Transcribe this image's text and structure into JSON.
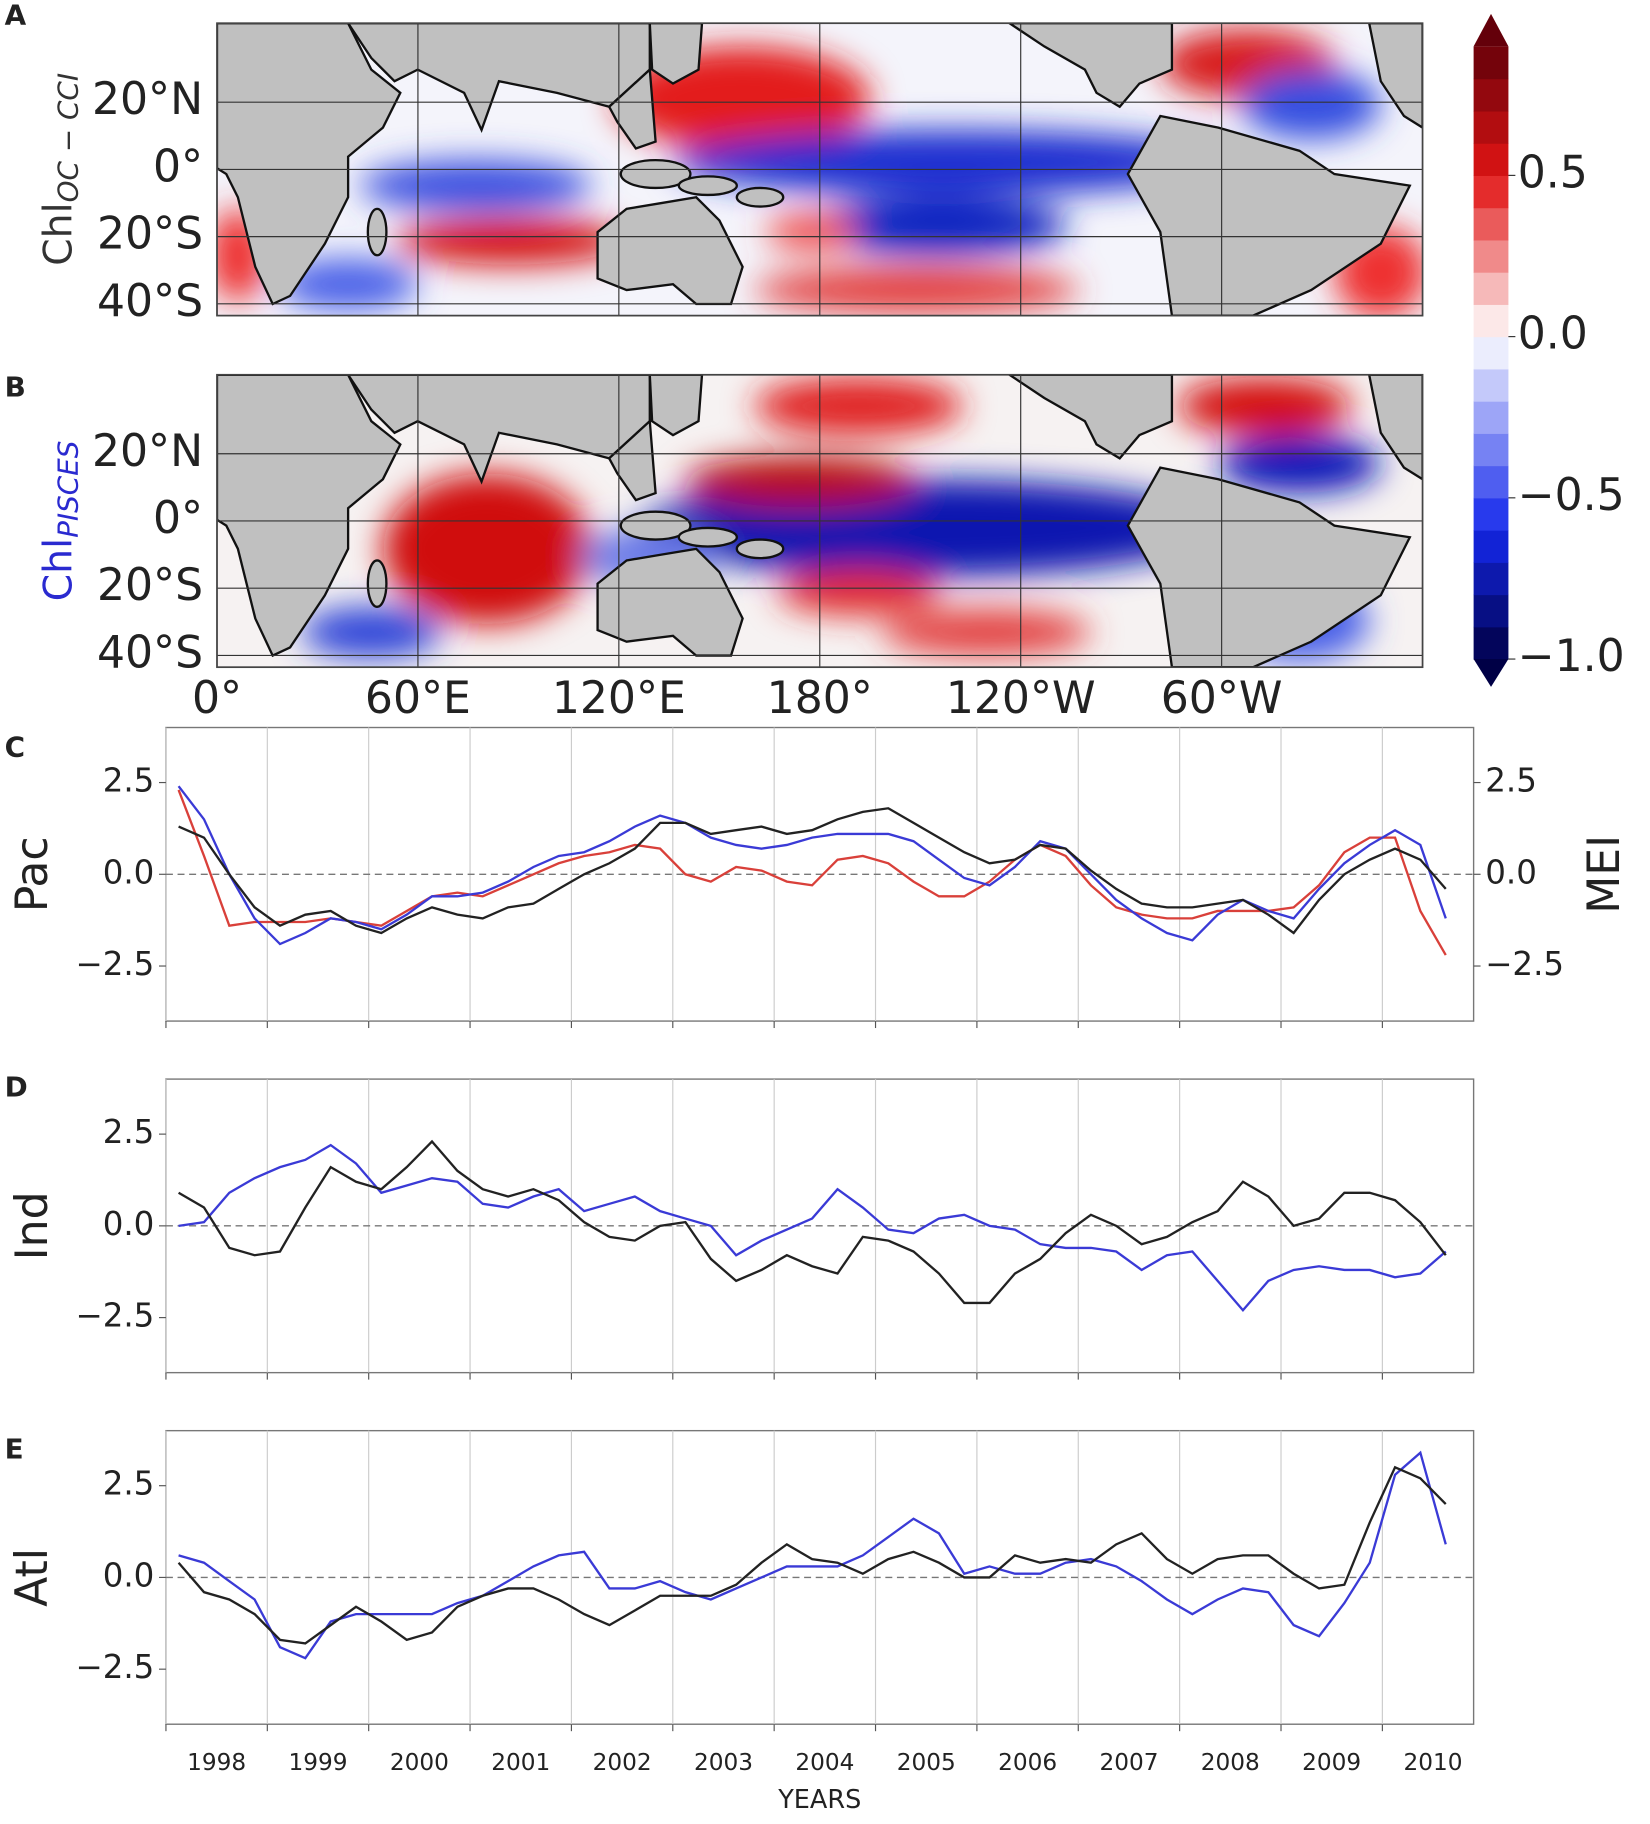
{
  "panel_labels": [
    "A",
    "B",
    "C",
    "D",
    "E"
  ],
  "maps": {
    "ylabels": [
      {
        "text": "Chl",
        "sub": "OC − CCI"
      },
      {
        "text": "Chl",
        "sub": "PISCES"
      }
    ],
    "lonlim": [
      0,
      360
    ],
    "latlim": [
      -43.5,
      43.5
    ],
    "lonticks": [
      {
        "value": 0,
        "label": "0°"
      },
      {
        "value": 60,
        "label": "60°E"
      },
      {
        "value": 120,
        "label": "120°E"
      },
      {
        "value": 180,
        "label": "180°"
      },
      {
        "value": 240,
        "label": "120°W"
      },
      {
        "value": 300,
        "label": "60°W"
      }
    ],
    "latticks": [
      {
        "value": 20,
        "label": "20°N"
      },
      {
        "value": 0,
        "label": "0°"
      },
      {
        "value": -20,
        "label": "20°S"
      },
      {
        "value": -40,
        "label": "40°S"
      }
    ]
  },
  "colorbar": {
    "lim": [
      -1.0,
      0.9
    ],
    "ticks": [
      0.5,
      {
        "value": 0,
        "label": "0.0"
      },
      {
        "value": -0.5,
        "label": "−0.5"
      },
      {
        "value": -1.0,
        "label": "−1.0"
      }
    ]
  },
  "chart_data": [
    {
      "type": "line",
      "ylabel": "Pac",
      "y2label": "MEI",
      "zero_line": true,
      "grid": true,
      "xlim": [
        1998,
        2010.9
      ],
      "xticks": [
        1998,
        1999,
        2000,
        2001,
        2002,
        2003,
        2004,
        2005,
        2006,
        2007,
        2008,
        2009,
        2010
      ],
      "ylim": [
        -4,
        4
      ],
      "yticks": [
        {
          "value": -2.5,
          "label": "−2.5"
        },
        {
          "value": 0,
          "label": "0.0"
        },
        2.5
      ],
      "y2lim": [
        -4,
        4
      ],
      "y2ticks": [
        {
          "value": -2.5,
          "label": "−2.5"
        },
        {
          "value": 0,
          "label": "0.0"
        },
        2.5
      ],
      "y2color": "#d9403a",
      "x": [
        1998.125,
        1998.375,
        1998.625,
        1998.875,
        1999.125,
        1999.375,
        1999.625,
        1999.875,
        2000.125,
        2000.375,
        2000.625,
        2000.875,
        2001.125,
        2001.375,
        2001.625,
        2001.875,
        2002.125,
        2002.375,
        2002.625,
        2002.875,
        2003.125,
        2003.375,
        2003.625,
        2003.875,
        2004.125,
        2004.375,
        2004.625,
        2004.875,
        2005.125,
        2005.375,
        2005.625,
        2005.875,
        2006.125,
        2006.375,
        2006.625,
        2006.875,
        2007.125,
        2007.375,
        2007.625,
        2007.875,
        2008.125,
        2008.375,
        2008.625,
        2008.875,
        2009.125,
        2009.375,
        2009.625,
        2009.875,
        2010.125,
        2010.375,
        2010.625
      ],
      "series": [
        {
          "color": "#d9403a",
          "axis": "y2",
          "values": [
            2.3,
            0.5,
            -1.4,
            -1.3,
            -1.3,
            -1.3,
            -1.2,
            -1.3,
            -1.4,
            -1.0,
            -0.6,
            -0.5,
            -0.6,
            -0.3,
            0.0,
            0.3,
            0.5,
            0.6,
            0.8,
            0.7,
            0.0,
            -0.2,
            0.2,
            0.1,
            -0.2,
            -0.3,
            0.4,
            0.5,
            0.3,
            -0.2,
            -0.6,
            -0.6,
            -0.2,
            0.4,
            0.8,
            0.5,
            -0.3,
            -0.9,
            -1.1,
            -1.2,
            -1.2,
            -1.0,
            -1.0,
            -1.0,
            -0.9,
            -0.3,
            0.6,
            1.0,
            1.0,
            -1.0,
            -2.2
          ]
        },
        {
          "color": "#3a3ad6",
          "values": [
            2.4,
            1.5,
            0.0,
            -1.2,
            -1.9,
            -1.6,
            -1.2,
            -1.3,
            -1.5,
            -1.1,
            -0.6,
            -0.6,
            -0.5,
            -0.2,
            0.2,
            0.5,
            0.6,
            0.9,
            1.3,
            1.6,
            1.4,
            1.0,
            0.8,
            0.7,
            0.8,
            1.0,
            1.1,
            1.1,
            1.1,
            0.9,
            0.4,
            -0.1,
            -0.3,
            0.2,
            0.9,
            0.7,
            0.0,
            -0.7,
            -1.2,
            -1.6,
            -1.8,
            -1.1,
            -0.7,
            -1.0,
            -1.2,
            -0.4,
            0.3,
            0.8,
            1.2,
            0.8,
            -1.2
          ]
        },
        {
          "color": "#222222",
          "values": [
            1.3,
            1.0,
            0.0,
            -0.9,
            -1.4,
            -1.1,
            -1.0,
            -1.4,
            -1.6,
            -1.2,
            -0.9,
            -1.1,
            -1.2,
            -0.9,
            -0.8,
            -0.4,
            0.0,
            0.3,
            0.7,
            1.4,
            1.4,
            1.1,
            1.2,
            1.3,
            1.1,
            1.2,
            1.5,
            1.7,
            1.8,
            1.4,
            1.0,
            0.6,
            0.3,
            0.4,
            0.8,
            0.7,
            0.1,
            -0.4,
            -0.8,
            -0.9,
            -0.9,
            -0.8,
            -0.7,
            -1.1,
            -1.6,
            -0.7,
            0.0,
            0.4,
            0.7,
            0.4,
            -0.4
          ]
        }
      ]
    },
    {
      "type": "line",
      "ylabel": "Ind",
      "zero_line": true,
      "grid": true,
      "xlim": [
        1998,
        2010.9
      ],
      "xticks": [
        1998,
        1999,
        2000,
        2001,
        2002,
        2003,
        2004,
        2005,
        2006,
        2007,
        2008,
        2009,
        2010
      ],
      "ylim": [
        -4,
        4
      ],
      "yticks": [
        {
          "value": -2.5,
          "label": "−2.5"
        },
        {
          "value": 0,
          "label": "0.0"
        },
        2.5
      ],
      "x": [
        1998.125,
        1998.375,
        1998.625,
        1998.875,
        1999.125,
        1999.375,
        1999.625,
        1999.875,
        2000.125,
        2000.375,
        2000.625,
        2000.875,
        2001.125,
        2001.375,
        2001.625,
        2001.875,
        2002.125,
        2002.375,
        2002.625,
        2002.875,
        2003.125,
        2003.375,
        2003.625,
        2003.875,
        2004.125,
        2004.375,
        2004.625,
        2004.875,
        2005.125,
        2005.375,
        2005.625,
        2005.875,
        2006.125,
        2006.375,
        2006.625,
        2006.875,
        2007.125,
        2007.375,
        2007.625,
        2007.875,
        2008.125,
        2008.375,
        2008.625,
        2008.875,
        2009.125,
        2009.375,
        2009.625,
        2009.875,
        2010.125,
        2010.375,
        2010.625
      ],
      "series": [
        {
          "color": "#3a3ad6",
          "values": [
            0.0,
            0.1,
            0.9,
            1.3,
            1.6,
            1.8,
            2.2,
            1.7,
            0.9,
            1.1,
            1.3,
            1.2,
            0.6,
            0.5,
            0.8,
            1.0,
            0.4,
            0.6,
            0.8,
            0.4,
            0.2,
            0.0,
            -0.8,
            -0.4,
            -0.1,
            0.2,
            1.0,
            0.5,
            -0.1,
            -0.2,
            0.2,
            0.3,
            0.0,
            -0.1,
            -0.5,
            -0.6,
            -0.6,
            -0.7,
            -1.2,
            -0.8,
            -0.7,
            -1.5,
            -2.3,
            -1.5,
            -1.2,
            -1.1,
            -1.2,
            -1.2,
            -1.4,
            -1.3,
            -0.7
          ]
        },
        {
          "color": "#222222",
          "values": [
            0.9,
            0.5,
            -0.6,
            -0.8,
            -0.7,
            0.5,
            1.6,
            1.2,
            1.0,
            1.6,
            2.3,
            1.5,
            1.0,
            0.8,
            1.0,
            0.7,
            0.1,
            -0.3,
            -0.4,
            0.0,
            0.1,
            -0.9,
            -1.5,
            -1.2,
            -0.8,
            -1.1,
            -1.3,
            -0.3,
            -0.4,
            -0.7,
            -1.3,
            -2.1,
            -2.1,
            -1.3,
            -0.9,
            -0.2,
            0.3,
            0.0,
            -0.5,
            -0.3,
            0.1,
            0.4,
            1.2,
            0.8,
            0.0,
            0.2,
            0.9,
            0.9,
            0.7,
            0.1,
            -0.8
          ]
        }
      ]
    },
    {
      "type": "line",
      "ylabel": "Atl",
      "xlabel": "YEARS",
      "zero_line": true,
      "grid": true,
      "xlim": [
        1998,
        2010.9
      ],
      "xticks": [
        1998,
        1999,
        2000,
        2001,
        2002,
        2003,
        2004,
        2005,
        2006,
        2007,
        2008,
        2009,
        2010
      ],
      "ylim": [
        -4,
        4
      ],
      "yticks": [
        {
          "value": -2.5,
          "label": "−2.5"
        },
        {
          "value": 0,
          "label": "0.0"
        },
        2.5
      ],
      "x": [
        1998.125,
        1998.375,
        1998.625,
        1998.875,
        1999.125,
        1999.375,
        1999.625,
        1999.875,
        2000.125,
        2000.375,
        2000.625,
        2000.875,
        2001.125,
        2001.375,
        2001.625,
        2001.875,
        2002.125,
        2002.375,
        2002.625,
        2002.875,
        2003.125,
        2003.375,
        2003.625,
        2003.875,
        2004.125,
        2004.375,
        2004.625,
        2004.875,
        2005.125,
        2005.375,
        2005.625,
        2005.875,
        2006.125,
        2006.375,
        2006.625,
        2006.875,
        2007.125,
        2007.375,
        2007.625,
        2007.875,
        2008.125,
        2008.375,
        2008.625,
        2008.875,
        2009.125,
        2009.375,
        2009.625,
        2009.875,
        2010.125,
        2010.375,
        2010.625
      ],
      "series": [
        {
          "color": "#3a3ad6",
          "values": [
            0.6,
            0.4,
            -0.1,
            -0.6,
            -1.9,
            -2.2,
            -1.2,
            -1.0,
            -1.0,
            -1.0,
            -1.0,
            -0.7,
            -0.5,
            -0.1,
            0.3,
            0.6,
            0.7,
            -0.3,
            -0.3,
            -0.1,
            -0.4,
            -0.6,
            -0.3,
            0.0,
            0.3,
            0.3,
            0.3,
            0.6,
            1.1,
            1.6,
            1.2,
            0.1,
            0.3,
            0.1,
            0.1,
            0.4,
            0.5,
            0.3,
            -0.1,
            -0.6,
            -1.0,
            -0.6,
            -0.3,
            -0.4,
            -1.3,
            -1.6,
            -0.7,
            0.4,
            2.8,
            3.4,
            0.9
          ]
        },
        {
          "color": "#222222",
          "values": [
            0.4,
            -0.4,
            -0.6,
            -1.0,
            -1.7,
            -1.8,
            -1.3,
            -0.8,
            -1.2,
            -1.7,
            -1.5,
            -0.8,
            -0.5,
            -0.3,
            -0.3,
            -0.6,
            -1.0,
            -1.3,
            -0.9,
            -0.5,
            -0.5,
            -0.5,
            -0.2,
            0.4,
            0.9,
            0.5,
            0.4,
            0.1,
            0.5,
            0.7,
            0.4,
            0.0,
            0.0,
            0.6,
            0.4,
            0.5,
            0.4,
            0.9,
            1.2,
            0.5,
            0.1,
            0.5,
            0.6,
            0.6,
            0.1,
            -0.3,
            -0.2,
            1.5,
            3.0,
            2.7,
            2.0
          ]
        }
      ]
    }
  ]
}
